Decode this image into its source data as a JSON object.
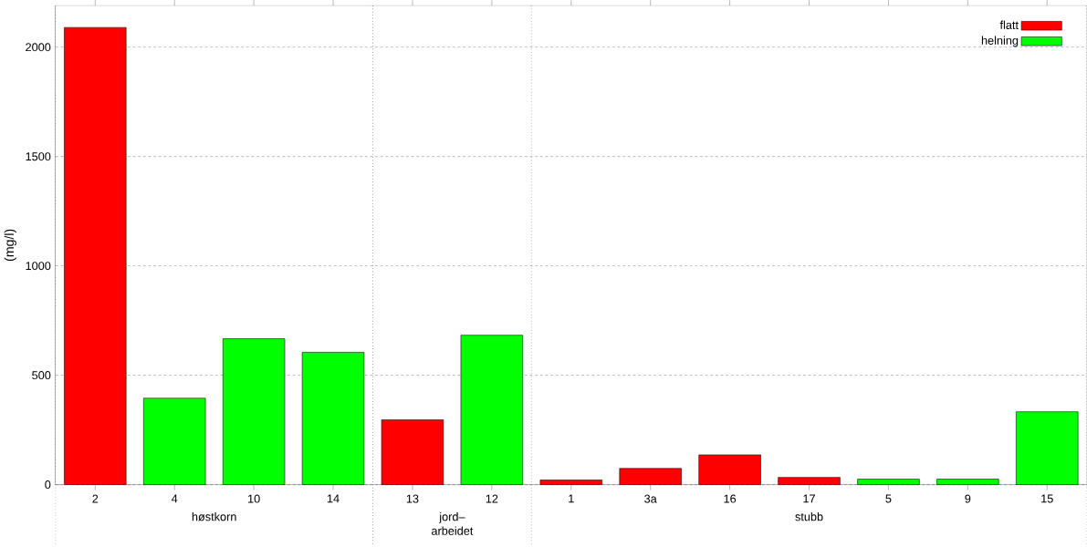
{
  "chart_data": {
    "type": "bar",
    "ylabel": "(mg/l)",
    "categories": [
      "2",
      "4",
      "10",
      "14",
      "13",
      "12",
      "1",
      "3a",
      "16",
      "17",
      "5",
      "9",
      "15"
    ],
    "series": [
      {
        "name": "flatt",
        "color": "#ff0000",
        "values": [
          2090,
          null,
          null,
          null,
          296,
          null,
          21,
          74,
          136,
          33,
          null,
          null,
          null
        ]
      },
      {
        "name": "helning",
        "color": "#00ff00",
        "values": [
          null,
          395,
          667,
          605,
          null,
          683,
          null,
          null,
          null,
          null,
          25,
          25,
          333
        ]
      }
    ],
    "ylim": [
      0,
      2190
    ],
    "yticks": [
      0,
      500,
      1000,
      1500,
      2000
    ],
    "grid": "y",
    "legend": "top right",
    "bands": [
      {
        "axis": "x",
        "from": "2",
        "to": "14",
        "label": "høstkorn",
        "color": "#ffffff"
      },
      {
        "axis": "x",
        "from": "13",
        "to": "12",
        "label": "jord– arbeidet",
        "color": "#ffffff"
      },
      {
        "axis": "x",
        "from": "1",
        "to": "15",
        "label": "stubb",
        "color": "#ffffff"
      }
    ]
  }
}
